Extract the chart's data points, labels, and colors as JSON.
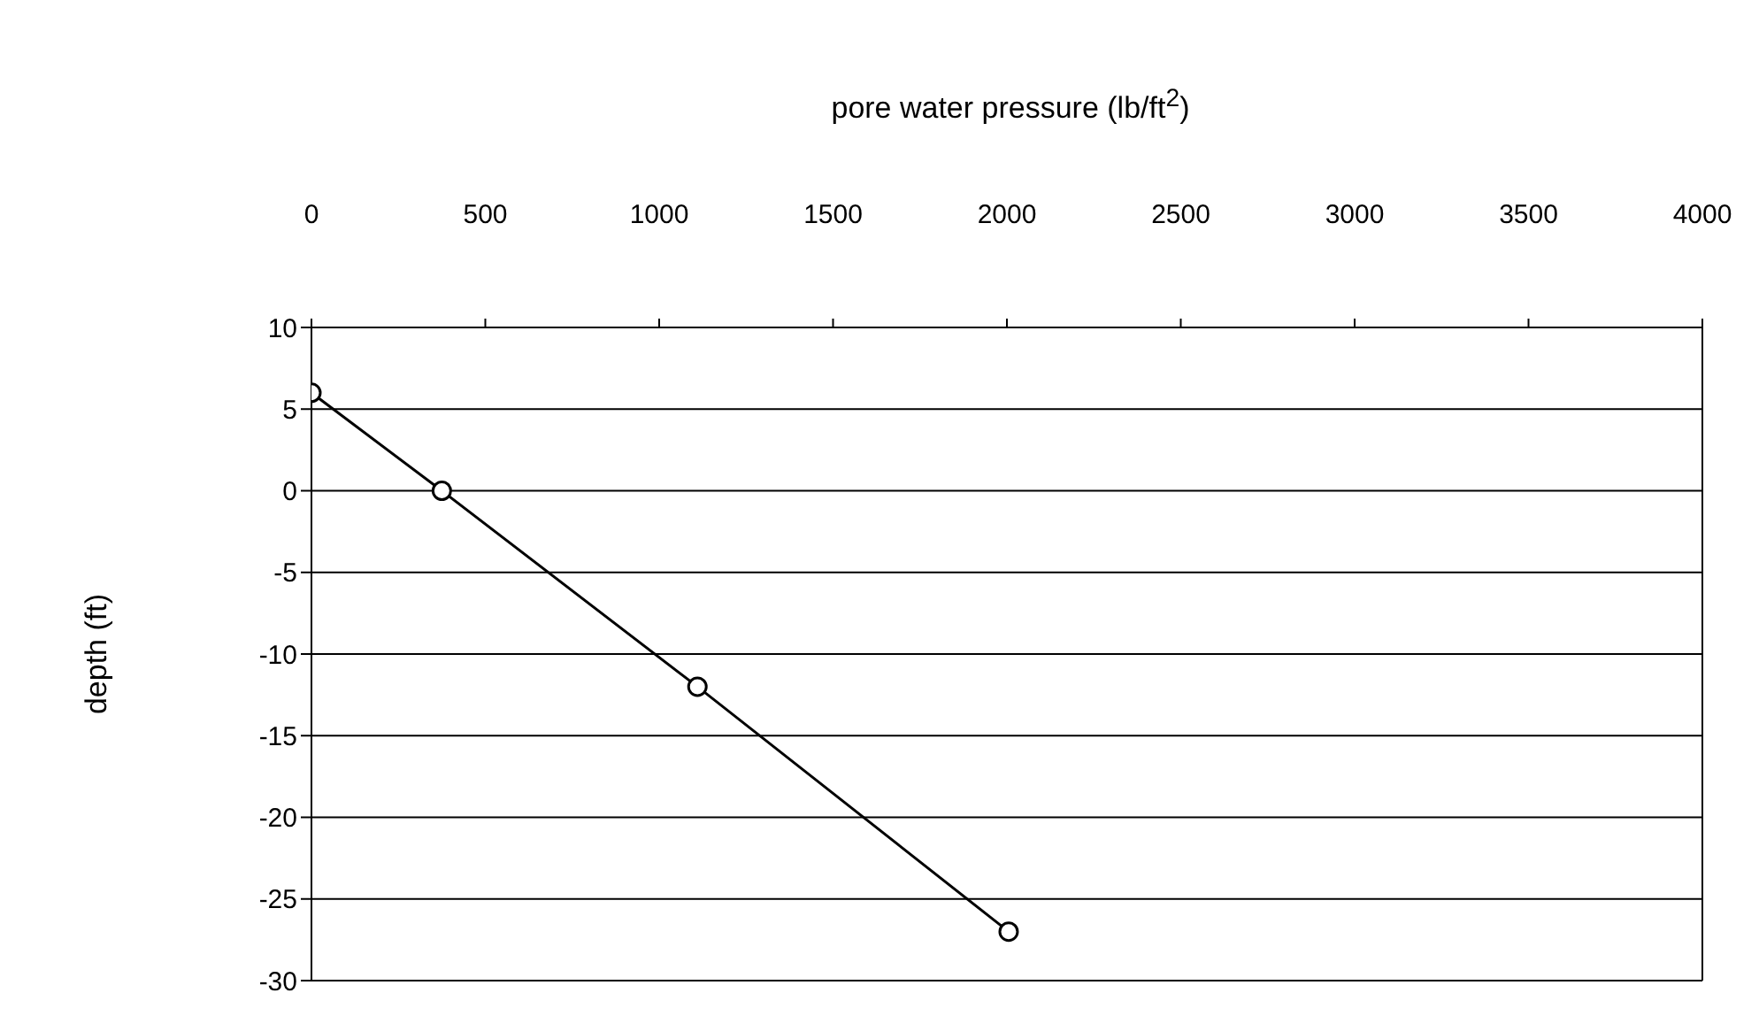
{
  "chart_data": {
    "type": "line",
    "xlabel": "pore water pressure (lb/ft$^{2}$)",
    "ylabel": "depth (ft)",
    "x": [
      0,
      375,
      1110,
      2005
    ],
    "series": [
      {
        "color": "#000000",
        "values": [
          6,
          0,
          -12,
          -27
        ]
      }
    ],
    "xlim": [
      0,
      4000
    ],
    "xticks": [
      0,
      500,
      1000,
      1500,
      2000,
      2500,
      3000,
      3500,
      4000
    ],
    "ylim": [
      -30,
      10
    ],
    "yticks": [
      -30,
      -25,
      -20,
      -15,
      -10,
      -5,
      0,
      5,
      10
    ],
    "grid": "y",
    "marker": "circle",
    "line_style": "solid"
  }
}
